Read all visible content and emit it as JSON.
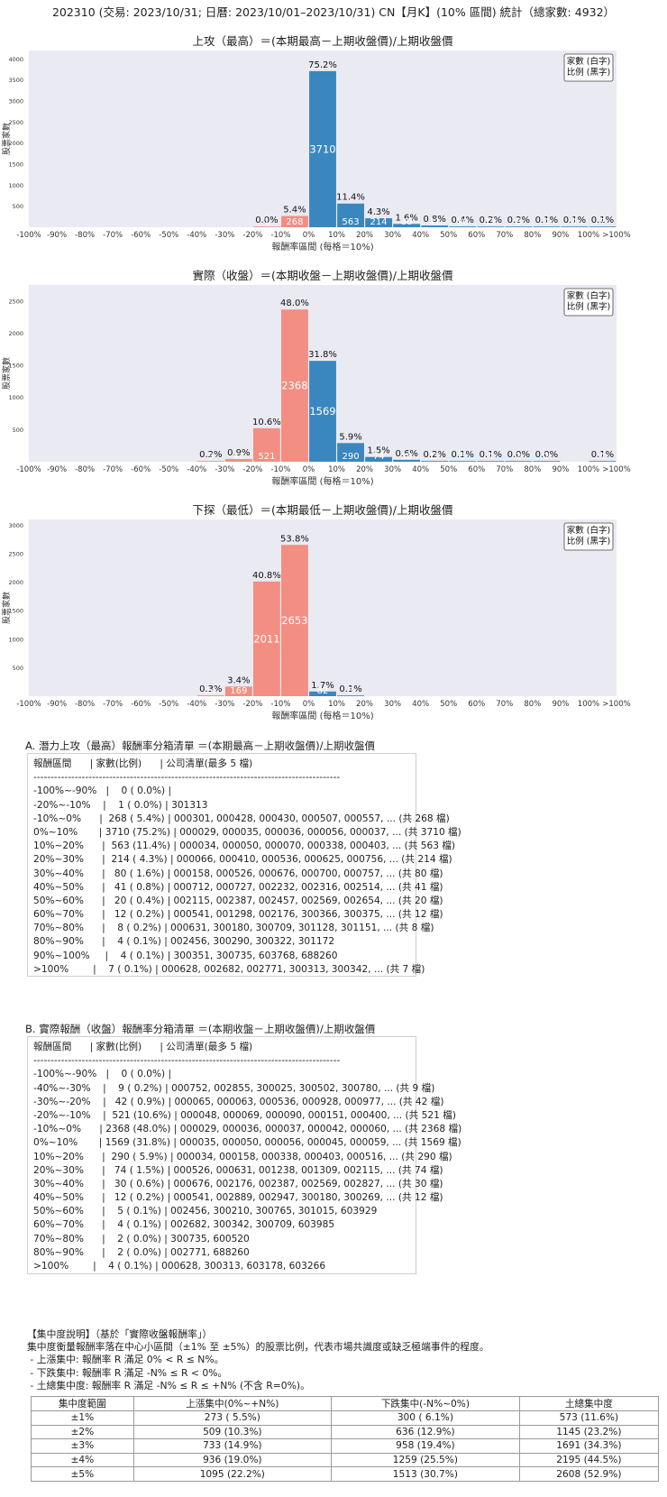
{
  "header": "202310 (交易: 2023/10/31; 日曆: 2023/10/01–2023/10/31) CN【月K】(10% 區間) 統計（總家數: 4932）",
  "chart_data": [
    {
      "type": "bar",
      "title": "上攻（最高）＝(本期最高－上期收盤價)/上期收盤價",
      "xlabel": "報酬率區間 (每格＝10%)",
      "ylabel": "股票家數",
      "legend": [
        "家數 (白字)",
        "比例 (黑字)"
      ],
      "legend_position": "top-right",
      "ylim": [
        0,
        4200
      ],
      "yticks": [
        500,
        1000,
        1500,
        2000,
        2500,
        3000,
        3500,
        4000
      ],
      "xticks": [
        "-100%",
        "-90%",
        "-80%",
        "-70%",
        "-60%",
        "-50%",
        "-40%",
        "-30%",
        "-20%",
        "-10%",
        "0%",
        "10%",
        "20%",
        "30%",
        "40%",
        "50%",
        "60%",
        "70%",
        "80%",
        "90%",
        "100%",
        ">100%"
      ],
      "bars": [
        {
          "bin": -2,
          "count": 1,
          "pct": "0.0%"
        },
        {
          "bin": -1,
          "count": 268,
          "pct": "5.4%"
        },
        {
          "bin": 0,
          "count": 3710,
          "pct": "75.2%"
        },
        {
          "bin": 1,
          "count": 563,
          "pct": "11.4%"
        },
        {
          "bin": 2,
          "count": 214,
          "pct": "4.3%"
        },
        {
          "bin": 3,
          "count": 80,
          "pct": "1.6%"
        },
        {
          "bin": 4,
          "count": 41,
          "pct": "0.8%"
        },
        {
          "bin": 5,
          "count": 20,
          "pct": "0.4%"
        },
        {
          "bin": 6,
          "count": 12,
          "pct": "0.2%"
        },
        {
          "bin": 7,
          "count": 8,
          "pct": "0.2%"
        },
        {
          "bin": 8,
          "count": 4,
          "pct": "0.1%"
        },
        {
          "bin": 9,
          "count": 4,
          "pct": "0.1%"
        },
        {
          "bin": 10,
          "count": 7,
          "pct": "0.1%"
        }
      ],
      "grid": false
    },
    {
      "type": "bar",
      "title": "實際（收盤）＝(本期收盤－上期收盤價)/上期收盤價",
      "xlabel": "報酬率區間 (每格＝10%)",
      "ylabel": "股票家數",
      "legend": [
        "家數 (白字)",
        "比例 (黑字)"
      ],
      "legend_position": "top-right",
      "ylim": [
        0,
        2750
      ],
      "yticks": [
        500,
        1000,
        1500,
        2000,
        2500
      ],
      "xticks": [
        "-100%",
        "-90%",
        "-80%",
        "-70%",
        "-60%",
        "-50%",
        "-40%",
        "-30%",
        "-20%",
        "-10%",
        "0%",
        "10%",
        "20%",
        "30%",
        "40%",
        "50%",
        "60%",
        "70%",
        "80%",
        "90%",
        "100%",
        ">100%"
      ],
      "bars": [
        {
          "bin": -4,
          "count": 9,
          "pct": "0.2%"
        },
        {
          "bin": -3,
          "count": 42,
          "pct": "0.9%"
        },
        {
          "bin": -2,
          "count": 521,
          "pct": "10.6%"
        },
        {
          "bin": -1,
          "count": 2368,
          "pct": "48.0%"
        },
        {
          "bin": 0,
          "count": 1569,
          "pct": "31.8%"
        },
        {
          "bin": 1,
          "count": 290,
          "pct": "5.9%"
        },
        {
          "bin": 2,
          "count": 74,
          "pct": "1.5%"
        },
        {
          "bin": 3,
          "count": 30,
          "pct": "0.6%"
        },
        {
          "bin": 4,
          "count": 12,
          "pct": "0.2%"
        },
        {
          "bin": 5,
          "count": 5,
          "pct": "0.1%"
        },
        {
          "bin": 6,
          "count": 4,
          "pct": "0.1%"
        },
        {
          "bin": 7,
          "count": 2,
          "pct": "0.0%"
        },
        {
          "bin": 8,
          "count": 2,
          "pct": "0.0%"
        },
        {
          "bin": 10,
          "count": 4,
          "pct": "0.1%"
        }
      ],
      "grid": false
    },
    {
      "type": "bar",
      "title": "下探（最低）＝(本期最低－上期收盤價)/上期收盤價",
      "xlabel": "報酬率區間 (每格＝10%)",
      "ylabel": "股票家數",
      "legend": [
        "家數 (白字)",
        "比例 (黑字)"
      ],
      "legend_position": "top-right",
      "ylim": [
        0,
        3100
      ],
      "yticks": [
        500,
        1000,
        1500,
        2000,
        2500,
        3000
      ],
      "xticks": [
        "-100%",
        "-90%",
        "-80%",
        "-70%",
        "-60%",
        "-50%",
        "-40%",
        "-30%",
        "-20%",
        "-10%",
        "0%",
        "10%",
        "20%",
        "30%",
        "40%",
        "50%",
        "60%",
        "70%",
        "80%",
        "90%",
        "100%",
        ">100%"
      ],
      "bars": [
        {
          "bin": -4,
          "count": 14,
          "pct": "0.3%"
        },
        {
          "bin": -3,
          "count": 169,
          "pct": "3.4%"
        },
        {
          "bin": -2,
          "count": 2011,
          "pct": "40.8%"
        },
        {
          "bin": -1,
          "count": 2653,
          "pct": "53.8%"
        },
        {
          "bin": 0,
          "count": 82,
          "pct": "1.7%"
        },
        {
          "bin": 1,
          "count": 3,
          "pct": "0.1%"
        }
      ],
      "grid": false
    }
  ],
  "colors": {
    "up": "#3a87c0",
    "down": "#f28e82",
    "plot_bg": "#eaeaf2"
  },
  "section_a": {
    "title": "A. 潛力上攻（最高）報酬率分箱清單 ＝(本期最高－上期收盤價)/上期收盤價",
    "rows": [
      "報酬區間      | 家數(比例)      | 公司清單(最多 5 檔)",
      "-----------------------------------------------------------------------------------------",
      "-100%~-90%   |    0 ( 0.0%) |",
      "-20%~-10%    |    1 ( 0.0%) | 301313",
      "-10%~0%      |  268 ( 5.4%) | 000301, 000428, 000430, 000507, 000557, ... (共 268 檔)",
      "0%~10%       | 3710 (75.2%) | 000029, 000035, 000036, 000056, 000037, ... (共 3710 檔)",
      "10%~20%      |  563 (11.4%) | 000034, 000050, 000070, 000338, 000403, ... (共 563 檔)",
      "20%~30%      |  214 ( 4.3%) | 000066, 000410, 000536, 000625, 000756, ... (共 214 檔)",
      "30%~40%      |   80 ( 1.6%) | 000158, 000526, 000676, 000700, 000757, ... (共 80 檔)",
      "40%~50%      |   41 ( 0.8%) | 000712, 000727, 002232, 002316, 002514, ... (共 41 檔)",
      "50%~60%      |   20 ( 0.4%) | 002115, 002387, 002457, 002569, 002654, ... (共 20 檔)",
      "60%~70%      |   12 ( 0.2%) | 000541, 001298, 002176, 300366, 300375, ... (共 12 檔)",
      "70%~80%      |    8 ( 0.2%) | 000631, 300180, 300709, 301128, 301151, ... (共 8 檔)",
      "80%~90%      |    4 ( 0.1%) | 002456, 300290, 300322, 301172",
      "90%~100%     |    4 ( 0.1%) | 300351, 300735, 603768, 688260",
      ">100%        |    7 ( 0.1%) | 000628, 002682, 002771, 300313, 300342, ... (共 7 檔)"
    ]
  },
  "section_b": {
    "title": "B. 實際報酬（收盤）報酬率分箱清單 ＝(本期收盤－上期收盤價)/上期收盤價",
    "rows": [
      "報酬區間      | 家數(比例)      | 公司清單(最多 5 檔)",
      "-----------------------------------------------------------------------------------------",
      "-100%~-90%   |    0 ( 0.0%) |",
      "-40%~-30%    |    9 ( 0.2%) | 000752, 002855, 300025, 300502, 300780, ... (共 9 檔)",
      "-30%~-20%    |   42 ( 0.9%) | 000065, 000063, 000536, 000928, 000977, ... (共 42 檔)",
      "-20%~-10%    |  521 (10.6%) | 000048, 000069, 000090, 000151, 000400, ... (共 521 檔)",
      "-10%~0%      | 2368 (48.0%) | 000029, 000036, 000037, 000042, 000060, ... (共 2368 檔)",
      "0%~10%       | 1569 (31.8%) | 000035, 000050, 000056, 000045, 000059, ... (共 1569 檔)",
      "10%~20%      |  290 ( 5.9%) | 000034, 000158, 000338, 000403, 000516, ... (共 290 檔)",
      "20%~30%      |   74 ( 1.5%) | 000526, 000631, 001238, 001309, 002115, ... (共 74 檔)",
      "30%~40%      |   30 ( 0.6%) | 000676, 002176, 002387, 002569, 002827, ... (共 30 檔)",
      "40%~50%      |   12 ( 0.2%) | 000541, 002889, 002947, 300180, 300269, ... (共 12 檔)",
      "50%~60%      |    5 ( 0.1%) | 002456, 300210, 300765, 301015, 603929",
      "60%~70%      |    4 ( 0.1%) | 002682, 300342, 300709, 603985",
      "70%~80%      |    2 ( 0.0%) | 300735, 600520",
      "80%~90%      |    2 ( 0.0%) | 002771, 688260",
      ">100%        |    4 ( 0.1%) | 000628, 300313, 603178, 603266"
    ]
  },
  "concentration": {
    "lines": [
      "【集中度說明】（基於「實際收盤報酬率」）",
      "集中度衡量報酬率落在中心小區間（±1% 至 ±5%）的股票比例，代表市場共識度或缺乏極端事件的程度。",
      " - 上漲集中: 報酬率 R 滿足 0% < R ≤ N%。",
      " - 下跌集中: 報酬率 R 滿足 -N% ≤ R < 0%。",
      " - 土總集中度: 報酬率 R 滿足 -N% ≤ R ≤ +N% (不含 R=0%)。"
    ],
    "headers": [
      "集中度範圍",
      "上漲集中(0%~+N%)",
      "下跌集中(-N%~0%)",
      "土總集中度"
    ],
    "rows": [
      [
        "±1%",
        "273 ( 5.5%)",
        "300 ( 6.1%)",
        "573 (11.6%)"
      ],
      [
        "±2%",
        "509 (10.3%)",
        "636 (12.9%)",
        "1145 (23.2%)"
      ],
      [
        "±3%",
        "733 (14.9%)",
        "958 (19.4%)",
        "1691 (34.3%)"
      ],
      [
        "±4%",
        "936 (19.0%)",
        "1259 (25.5%)",
        "2195 (44.5%)"
      ],
      [
        "±5%",
        "1095 (22.2%)",
        "1513 (30.7%)",
        "2608 (52.9%)"
      ]
    ]
  }
}
